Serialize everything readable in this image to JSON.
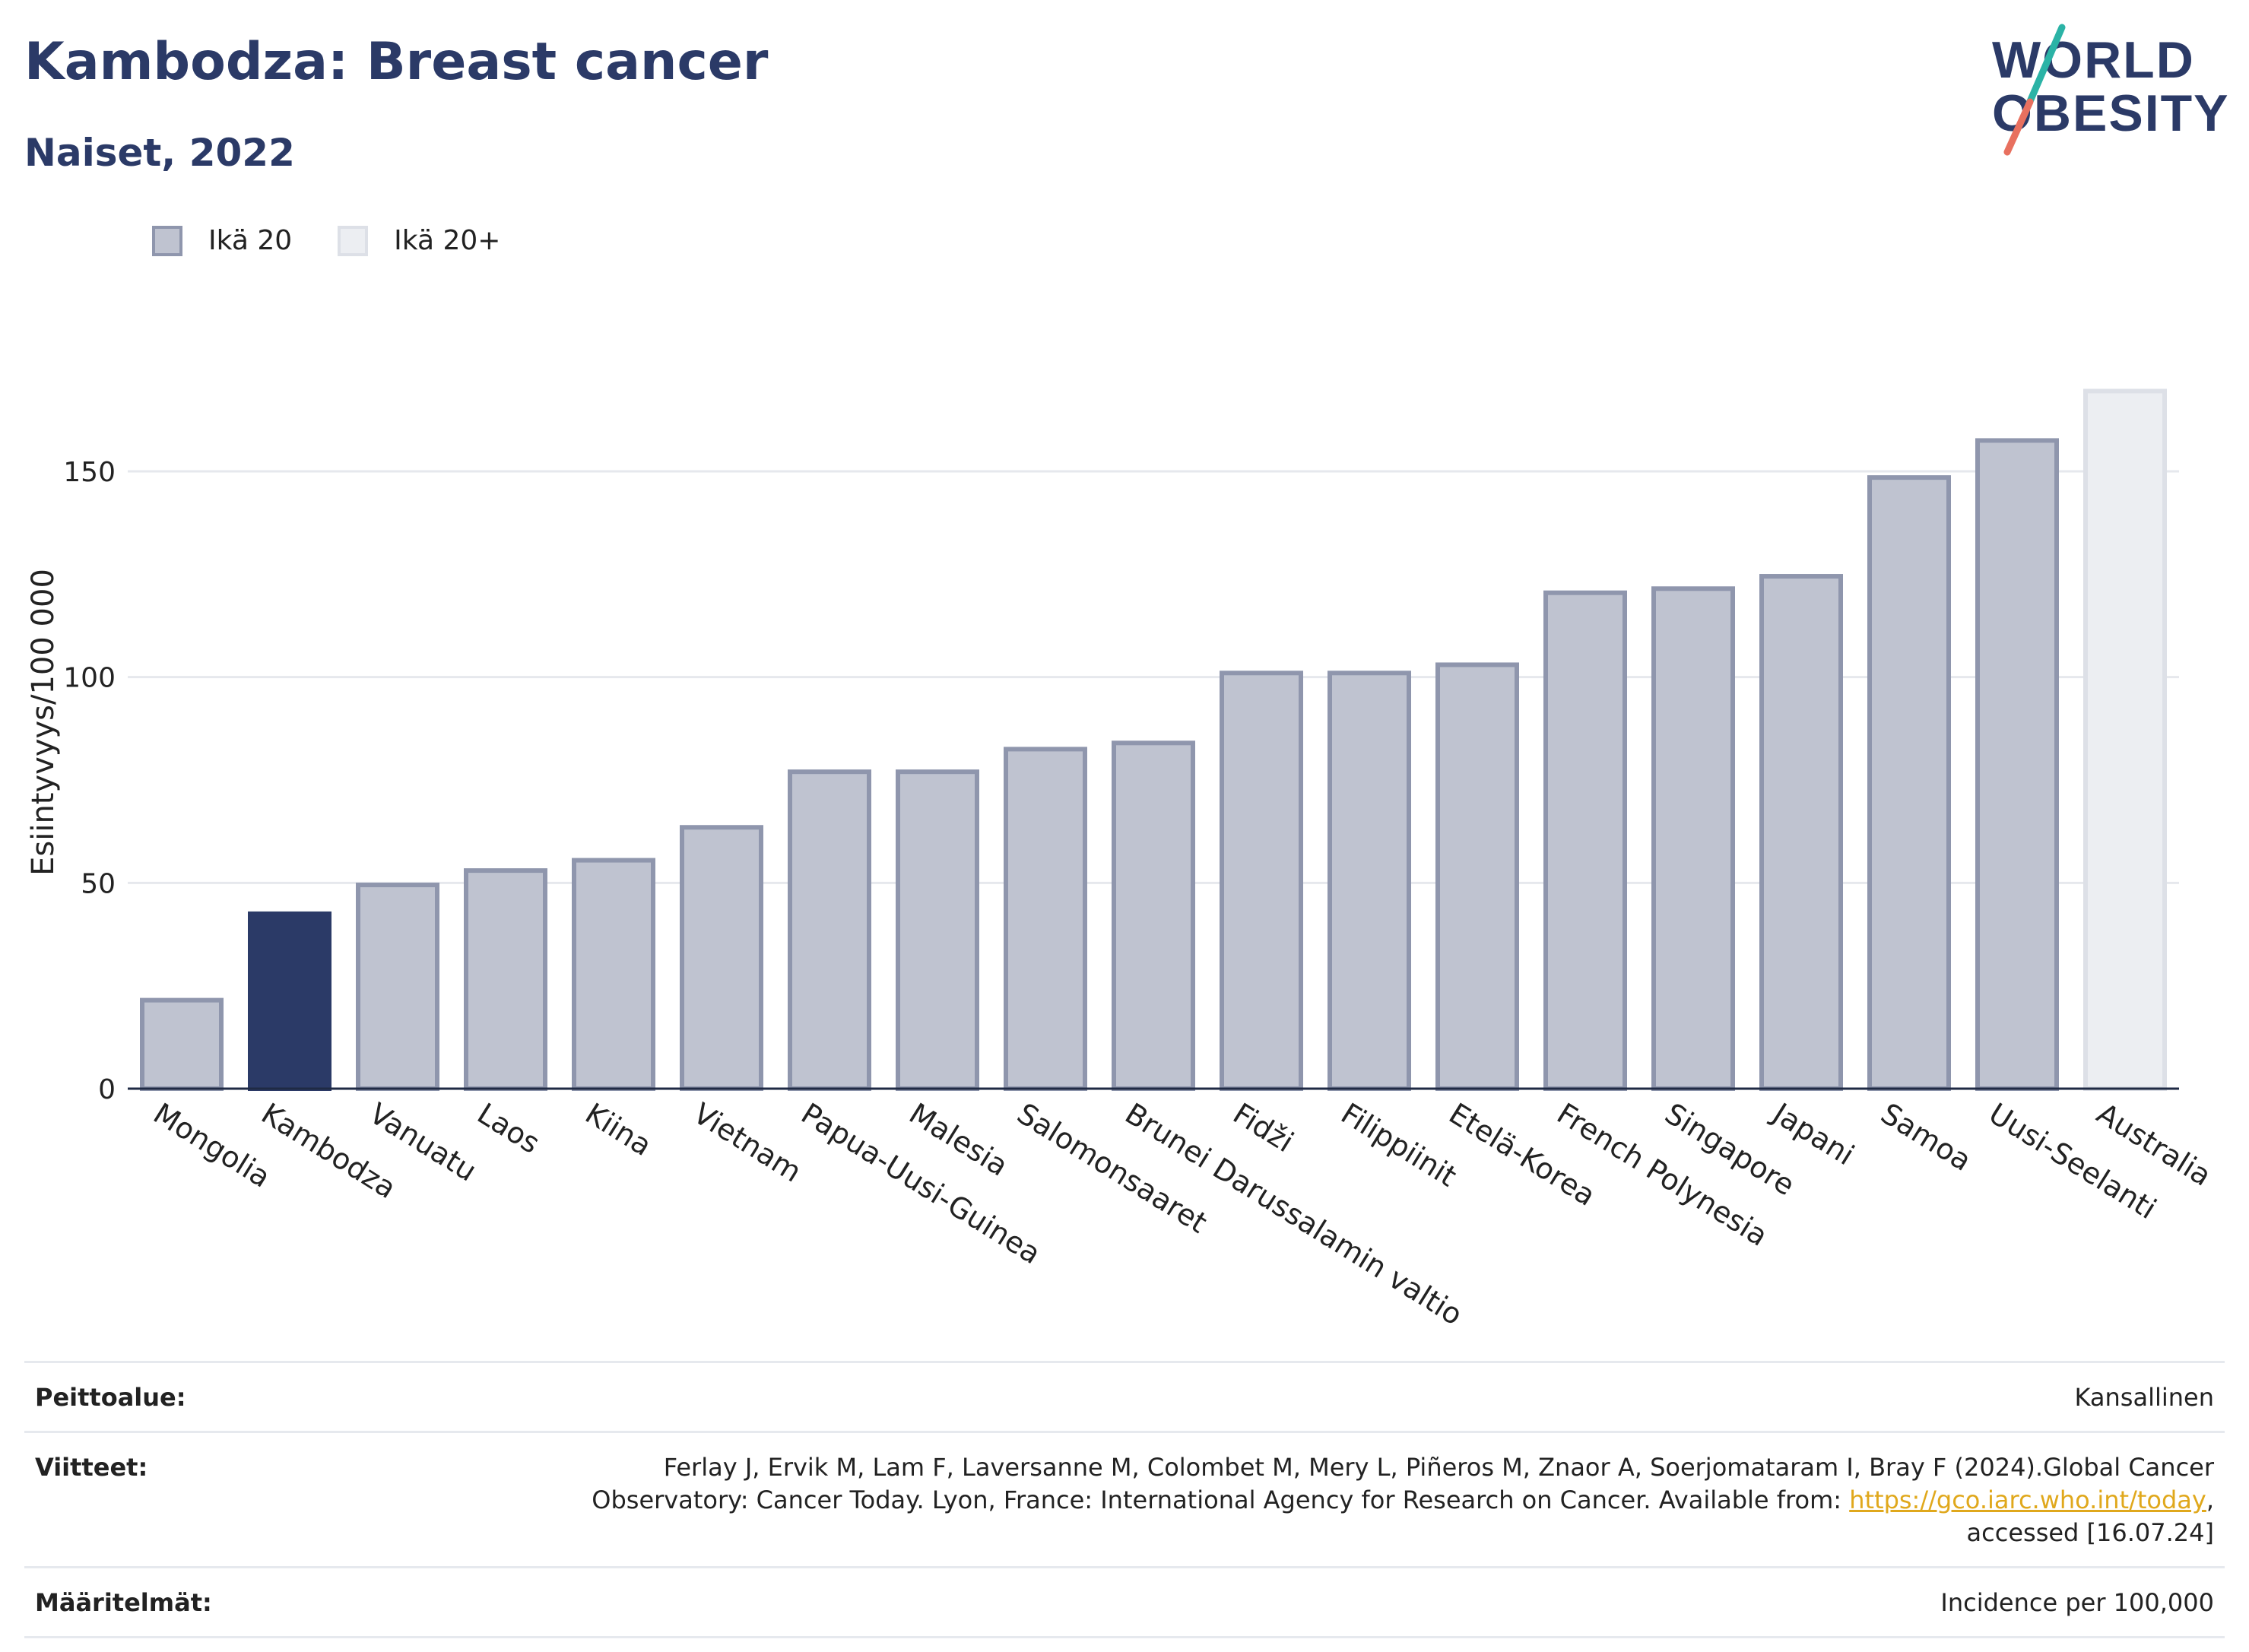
{
  "header": {
    "title": "Kambodza: Breast cancer",
    "subtitle": "Naiset, 2022"
  },
  "logo": {
    "line1": "WORLD",
    "line2": "OBESITY"
  },
  "legend": [
    {
      "label": "Ikä 20",
      "color": "#bfc3d0"
    },
    {
      "label": "Ikä 20+",
      "color": "#eceef2"
    }
  ],
  "colors": {
    "highlight": "#2b3a67",
    "bar_fill": "#bfc3d0",
    "bar_stroke": "#8f96ad",
    "bar_light": "#eceef2",
    "bar_light_stroke": "#dde0e7",
    "grid": "#e6e8ed"
  },
  "chart_data": {
    "type": "bar",
    "title": "Kambodza: Breast cancer",
    "subtitle": "Naiset, 2022",
    "ylabel": "Esiintyvyys/100 000",
    "ylim": [
      0,
      175
    ],
    "yticks": [
      0,
      50,
      100,
      150
    ],
    "grid": true,
    "legend_position": "top-left",
    "highlight": "Kambodza",
    "categories": [
      "Mongolia",
      "Kambodza",
      "Vanuatu",
      "Laos",
      "Kiina",
      "Vietnam",
      "Papua-Uusi-Guinea",
      "Malesia",
      "Salomonsaaret",
      "Brunei Darussalamin valtio",
      "Fidži",
      "Filippiinit",
      "Etelä-Korea",
      "French Polynesia",
      "Singapore",
      "Japani",
      "Samoa",
      "Uusi-Seelanti",
      "Australia"
    ],
    "values": [
      21.5,
      42.5,
      49.5,
      53,
      55.5,
      63.5,
      77,
      77,
      82.5,
      84,
      101,
      101,
      103,
      120.5,
      121.5,
      124.5,
      148.5,
      157.5,
      169.5
    ],
    "series_group": [
      "Ikä 20",
      "Ikä 20",
      "Ikä 20",
      "Ikä 20",
      "Ikä 20",
      "Ikä 20",
      "Ikä 20",
      "Ikä 20",
      "Ikä 20",
      "Ikä 20",
      "Ikä 20",
      "Ikä 20",
      "Ikä 20",
      "Ikä 20",
      "Ikä 20",
      "Ikä 20",
      "Ikä 20",
      "Ikä 20",
      "Ikä 20+"
    ]
  },
  "footer": {
    "coverage_label": "Peittoalue:",
    "coverage_value": "Kansallinen",
    "references_label": "Viitteet:",
    "references_text": "Ferlay J, Ervik M, Lam F, Laversanne M, Colombet M, Mery L, Piñeros M, Znaor A, Soerjomataram I, Bray F (2024).Global Cancer Observatory: Cancer Today. Lyon, France: International Agency for Research on Cancer. Available from: ",
    "references_link": "https://gco.iarc.who.int/today",
    "references_suffix": ", accessed [16.07.24]",
    "definitions_label": "Määritelmät:",
    "definitions_value": "Incidence per 100,000"
  }
}
